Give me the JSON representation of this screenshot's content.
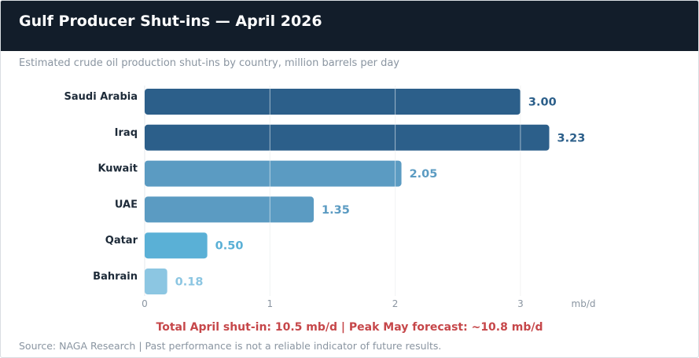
{
  "header": {
    "title": "Gulf Producer Shut-ins — April 2026"
  },
  "subtitle": "Estimated crude oil production shut-ins by country, million barrels per day",
  "chart_data": {
    "type": "bar",
    "orientation": "horizontal",
    "categories": [
      "Saudi Arabia",
      "Iraq",
      "Kuwait",
      "UAE",
      "Qatar",
      "Bahrain"
    ],
    "values": [
      3.0,
      3.23,
      2.05,
      1.35,
      0.5,
      0.18
    ],
    "value_labels": [
      "3.00",
      "3.23",
      "2.05",
      "1.35",
      "0.50",
      "0.18"
    ],
    "bar_colors": [
      "#2c5f8a",
      "#2c5f8a",
      "#5b9bc2",
      "#5b9bc2",
      "#5ab0d6",
      "#8cc6e2"
    ],
    "xlim": [
      0,
      3.5
    ],
    "xticks": [
      0,
      1,
      2,
      3
    ],
    "xtick_labels": [
      "0",
      "1",
      "2",
      "3"
    ],
    "xlabel": "mb/d",
    "grid": "vertical"
  },
  "footer": {
    "total_note": "Total April shut-in: 10.5 mb/d  |  Peak May forecast: ~10.8 mb/d",
    "source": "Source: NAGA Research  |  Past performance is not a reliable indicator of future results."
  }
}
